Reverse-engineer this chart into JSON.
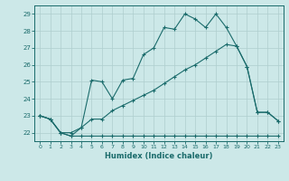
{
  "xlabel": "Humidex (Indice chaleur)",
  "bg_color": "#cce8e8",
  "line_color": "#1a6b6b",
  "grid_color": "#b0d0d0",
  "xlim": [
    -0.5,
    23.5
  ],
  "ylim": [
    21.5,
    29.5
  ],
  "yticks": [
    22,
    23,
    24,
    25,
    26,
    27,
    28,
    29
  ],
  "xticks": [
    0,
    1,
    2,
    3,
    4,
    5,
    6,
    7,
    8,
    9,
    10,
    11,
    12,
    13,
    14,
    15,
    16,
    17,
    18,
    19,
    20,
    21,
    22,
    23
  ],
  "line1_x": [
    0,
    1,
    2,
    3,
    4,
    5,
    6,
    7,
    8,
    9,
    10,
    11,
    12,
    13,
    14,
    15,
    16,
    17,
    18,
    19,
    20,
    21,
    22,
    23
  ],
  "line1_y": [
    23.0,
    22.8,
    22.0,
    21.8,
    22.3,
    25.1,
    25.0,
    24.0,
    25.1,
    25.2,
    26.6,
    27.0,
    28.2,
    28.1,
    29.0,
    28.7,
    28.2,
    29.0,
    28.2,
    27.1,
    25.9,
    23.2,
    23.2,
    22.7
  ],
  "line2_x": [
    0,
    1,
    2,
    3,
    4,
    5,
    6,
    7,
    8,
    9,
    10,
    11,
    12,
    13,
    14,
    15,
    16,
    17,
    18,
    19,
    20,
    21,
    22,
    23
  ],
  "line2_y": [
    23.0,
    22.8,
    22.0,
    22.0,
    22.3,
    22.8,
    22.8,
    23.3,
    23.6,
    23.9,
    24.2,
    24.5,
    24.9,
    25.3,
    25.7,
    26.0,
    26.4,
    26.8,
    27.2,
    27.1,
    25.9,
    23.2,
    23.2,
    22.7
  ],
  "line3_x": [
    0,
    1,
    2,
    3,
    4,
    5,
    6,
    7,
    8,
    9,
    10,
    11,
    12,
    13,
    14,
    15,
    16,
    17,
    18,
    19,
    20,
    21,
    22,
    23
  ],
  "line3_y": [
    23.0,
    22.8,
    22.0,
    21.8,
    21.8,
    21.8,
    21.8,
    21.8,
    21.8,
    21.8,
    21.8,
    21.8,
    21.8,
    21.8,
    21.8,
    21.8,
    21.8,
    21.8,
    21.8,
    21.8,
    21.8,
    21.8,
    21.8,
    21.8
  ]
}
